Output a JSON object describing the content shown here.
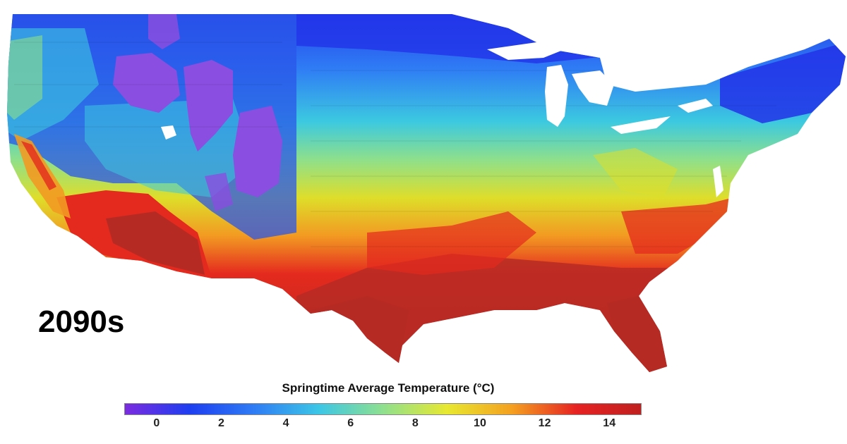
{
  "decade_label": "2090s",
  "legend": {
    "title": "Springtime Average Temperature (°C)",
    "ticks": [
      0,
      2,
      4,
      6,
      8,
      10,
      12,
      14
    ],
    "range": [
      -1,
      15
    ],
    "colors": [
      "#7b2be0",
      "#1e3ef0",
      "#2f7cf5",
      "#3cc6e6",
      "#8fe08f",
      "#e8e830",
      "#f4a020",
      "#e62222",
      "#c02020"
    ]
  },
  "map_colors": {
    "purple": "#8a4ee0",
    "blue": "#2a56e8",
    "cyan": "#3cc9e0",
    "green": "#8ee08a",
    "yellow": "#dede2a",
    "orange": "#f29a22",
    "red": "#e42a1e",
    "darkred": "#b62a24",
    "lake": "#ffffff"
  }
}
